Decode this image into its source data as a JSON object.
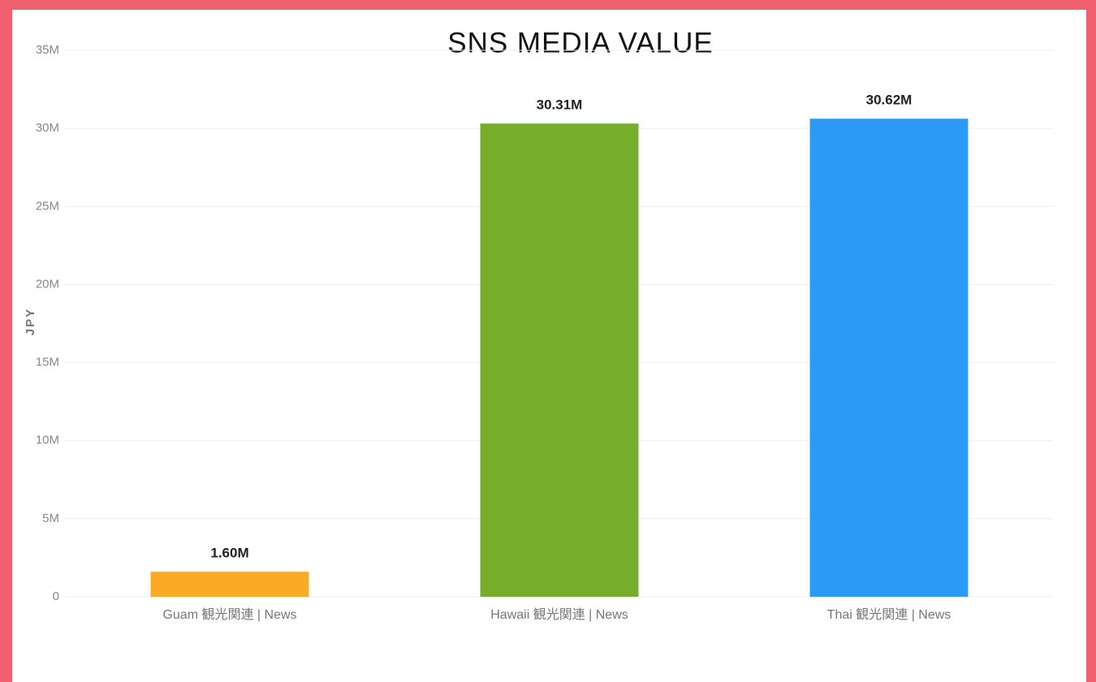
{
  "chart_data": {
    "type": "bar",
    "title": "SNS MEDIA VALUE",
    "y_label": "JPY",
    "categories": [
      "Guam 観光関連 | News",
      "Hawaii 観光関連 | News",
      "Thai 観光関連 | News"
    ],
    "values": [
      1600000,
      30310000,
      30620000
    ],
    "value_labels": [
      "1.60M",
      "30.31M",
      "30.62M"
    ],
    "colors": [
      "#fbaa26",
      "#76ad2a",
      "#2b9af7"
    ],
    "ylim": [
      0,
      35000000
    ],
    "yticks": [
      0,
      {
        "value": 5000000,
        "label": "5M"
      },
      {
        "value": 10000000,
        "label": "10M"
      },
      {
        "value": 15000000,
        "label": "15M"
      },
      {
        "value": 20000000,
        "label": "20M"
      },
      {
        "value": 25000000,
        "label": "25M"
      },
      {
        "value": 30000000,
        "label": "30M"
      },
      {
        "value": 35000000,
        "label": "35M"
      }
    ],
    "grid": true
  }
}
